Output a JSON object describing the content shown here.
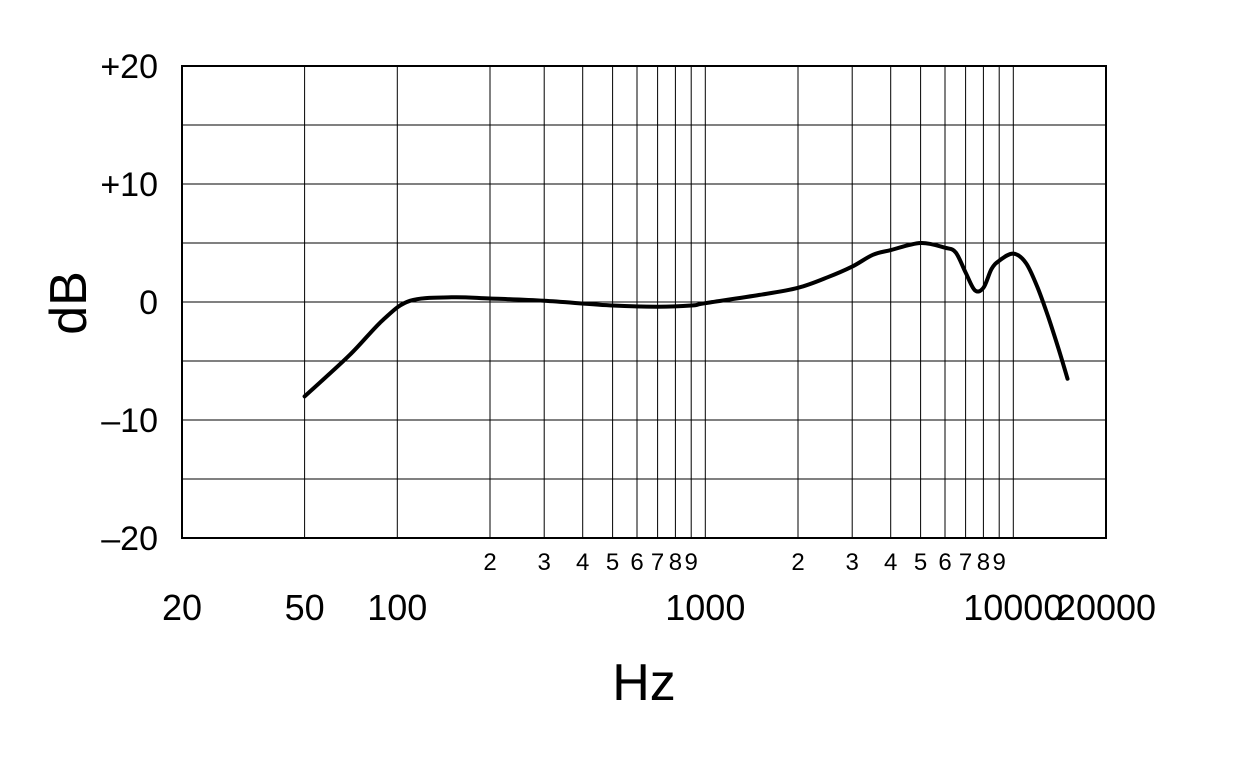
{
  "chart_data": {
    "type": "line",
    "xlabel": "Hz",
    "ylabel": "dB",
    "xscale": "log",
    "xlim": [
      20,
      20000
    ],
    "ylim": [
      -20,
      20
    ],
    "grid": true,
    "yticks": [
      {
        "value": 20,
        "label": "+20"
      },
      {
        "value": 10,
        "label": "+10"
      },
      {
        "value": 0,
        "label": "0"
      },
      {
        "value": -10,
        "label": "–10"
      },
      {
        "value": -20,
        "label": "–20"
      }
    ],
    "ygrid_values": [
      20,
      15,
      10,
      5,
      0,
      -5,
      -10,
      -15,
      -20
    ],
    "xgrid_values": [
      50,
      100,
      200,
      300,
      400,
      500,
      600,
      700,
      800,
      900,
      1000,
      2000,
      3000,
      4000,
      5000,
      6000,
      7000,
      8000,
      9000,
      10000
    ],
    "xticks_major": [
      {
        "value": 20,
        "label": "20"
      },
      {
        "value": 50,
        "label": "50"
      },
      {
        "value": 100,
        "label": "100"
      },
      {
        "value": 1000,
        "label": "1000"
      },
      {
        "value": 10000,
        "label": "10000"
      },
      {
        "value": 20000,
        "label": "20000"
      }
    ],
    "xticks_minor": [
      {
        "value": 200,
        "label": "2"
      },
      {
        "value": 300,
        "label": "3"
      },
      {
        "value": 400,
        "label": "4"
      },
      {
        "value": 500,
        "label": "5"
      },
      {
        "value": 600,
        "label": "6"
      },
      {
        "value": 700,
        "label": "7"
      },
      {
        "value": 800,
        "label": "8"
      },
      {
        "value": 900,
        "label": "9"
      },
      {
        "value": 2000,
        "label": "2"
      },
      {
        "value": 3000,
        "label": "3"
      },
      {
        "value": 4000,
        "label": "4"
      },
      {
        "value": 5000,
        "label": "5"
      },
      {
        "value": 6000,
        "label": "6"
      },
      {
        "value": 7000,
        "label": "7"
      },
      {
        "value": 8000,
        "label": "8"
      },
      {
        "value": 9000,
        "label": "9"
      }
    ],
    "series": [
      {
        "x": [
          50,
          70,
          90,
          110,
          150,
          200,
          300,
          500,
          700,
          900,
          1000,
          1500,
          2000,
          2500,
          3000,
          3500,
          4000,
          5000,
          6000,
          6500,
          7000,
          7500,
          8000,
          8500,
          9000,
          10000,
          11000,
          12000,
          13000,
          14000,
          15000
        ],
        "y": [
          -8,
          -4.5,
          -1.5,
          0.1,
          0.4,
          0.3,
          0.1,
          -0.3,
          -0.4,
          -0.3,
          -0.1,
          0.6,
          1.2,
          2.1,
          3.0,
          4.0,
          4.4,
          5.0,
          4.6,
          4.2,
          2.5,
          1.0,
          1.2,
          2.8,
          3.5,
          4.1,
          3.3,
          1.2,
          -1.3,
          -3.9,
          -6.5
        ]
      }
    ]
  }
}
